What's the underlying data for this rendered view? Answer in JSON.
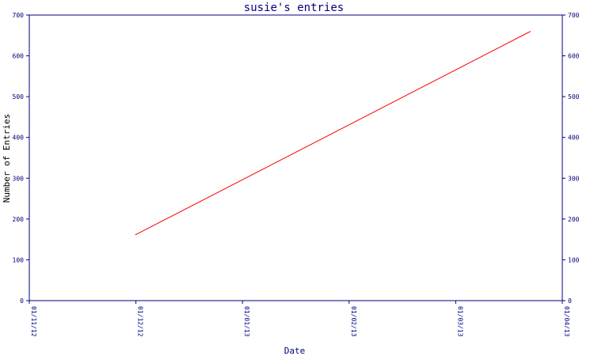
{
  "chart_data": {
    "type": "line",
    "title": "susie's entries",
    "xlabel": "Date",
    "ylabel": "Number of Entries",
    "x_ticks": [
      "01/11/12",
      "01/12/12",
      "01/01/13",
      "01/02/13",
      "01/03/13",
      "01/04/13"
    ],
    "y_ticks": [
      0,
      100,
      200,
      300,
      400,
      500,
      600,
      700
    ],
    "ylim": [
      0,
      700
    ],
    "xlim": [
      "2012-11-01",
      "2013-04-01"
    ],
    "grid": false,
    "right_axis": true,
    "series": [
      {
        "x": [
          "2012-12-01",
          "2013-03-23"
        ],
        "y": [
          161,
          660
        ]
      }
    ],
    "colors": {
      "axis": "#000080",
      "text": "#000080",
      "series": "#ff0000"
    }
  }
}
